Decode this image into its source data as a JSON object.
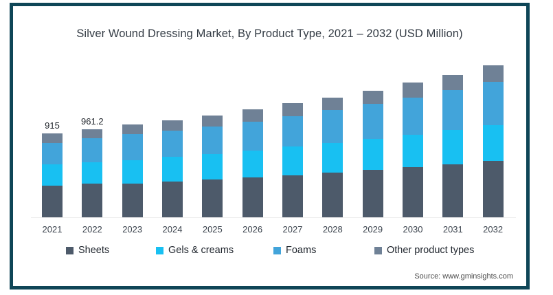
{
  "title": "Silver Wound Dressing Market, By Product Type, 2021 – 2032 (USD Million)",
  "source": "Source: www.gminsights.com",
  "frame": {
    "border_color": "#0f4657",
    "background": "#ffffff"
  },
  "legend": [
    {
      "label": "Sheets",
      "color": "#4d5a6a"
    },
    {
      "label": "Gels & creams",
      "color": "#18c0f2"
    },
    {
      "label": "Foams",
      "color": "#42a4da"
    },
    {
      "label": "Other product types",
      "color": "#6f8196"
    }
  ],
  "chart_data": {
    "type": "bar",
    "stacked": true,
    "title": "Silver Wound Dressing Market, By Product Type, 2021 – 2032 (USD Million)",
    "unit": "USD Million",
    "xlabel": "",
    "ylabel": "",
    "ylim": [
      0,
      1700
    ],
    "grid": false,
    "legend_position": "bottom",
    "categories": [
      "2021",
      "2022",
      "2023",
      "2024",
      "2025",
      "2026",
      "2027",
      "2028",
      "2029",
      "2030",
      "2031",
      "2032"
    ],
    "series": [
      {
        "name": "Sheets",
        "color": "#4d5a6a",
        "values": [
          343,
          368,
          370,
          390,
          410,
          432,
          458,
          485,
          515,
          545,
          577,
          612
        ]
      },
      {
        "name": "Gels & creams",
        "color": "#18c0f2",
        "values": [
          232,
          234,
          255,
          268,
          282,
          297,
          312,
          327,
          342,
          358,
          375,
          393
        ]
      },
      {
        "name": "Foams",
        "color": "#42a4da",
        "values": [
          237,
          263,
          280,
          288,
          295,
          315,
          335,
          355,
          380,
          405,
          437,
          472
        ]
      },
      {
        "name": "Other product types",
        "color": "#6f8196",
        "values": [
          103,
          96.2,
          108,
          115,
          124,
          132,
          139,
          140,
          146,
          159,
          167,
          178
        ]
      }
    ],
    "totals": [
      915,
      961.2,
      1013,
      1061,
      1111,
      1176,
      1244,
      1307,
      1383,
      1467,
      1556,
      1655
    ],
    "value_labels": [
      "915",
      "961.2",
      null,
      null,
      null,
      null,
      null,
      null,
      null,
      null,
      null,
      null
    ]
  }
}
